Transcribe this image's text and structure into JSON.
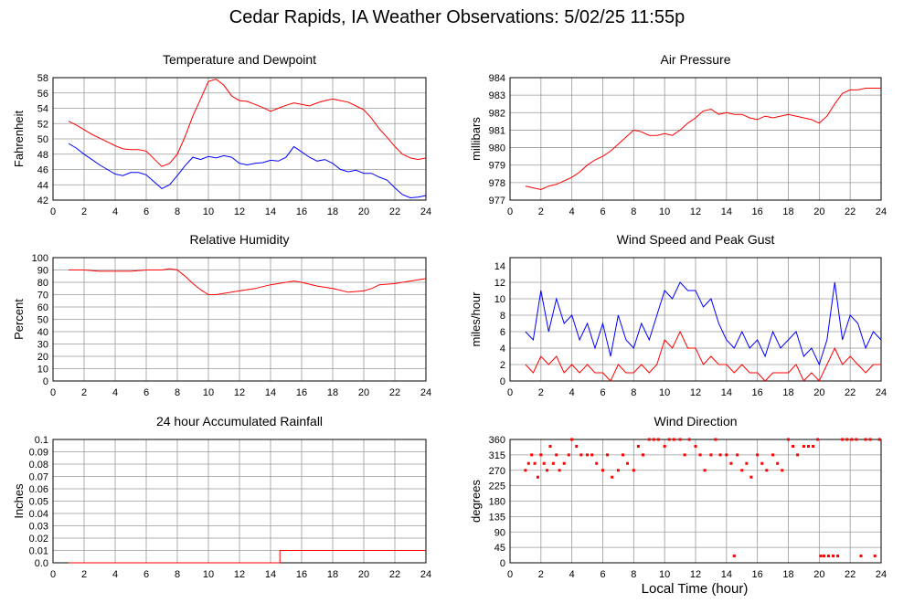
{
  "title": "Cedar Rapids, IA Weather Observations: 5/02/25 11:55p",
  "xlabel": "Local Time (hour)",
  "colors": {
    "red": "#ff0000",
    "blue": "#0000ff",
    "grid": "#999999",
    "frame": "#000000"
  },
  "chart_data": [
    {
      "type": "line",
      "title": "Temperature and Dewpoint",
      "ylabel": "Fahrenheit",
      "xlim": [
        0,
        24
      ],
      "ylim": [
        42,
        58
      ],
      "xticks": [
        0,
        2,
        4,
        6,
        8,
        10,
        12,
        14,
        16,
        18,
        20,
        22,
        24
      ],
      "yticks": [
        42,
        44,
        46,
        48,
        50,
        52,
        54,
        56,
        58
      ],
      "grid": true,
      "series": [
        {
          "color": "red",
          "x": [
            1,
            1.5,
            2,
            2.5,
            3,
            3.5,
            4,
            4.5,
            5,
            5.5,
            6,
            6.5,
            7,
            7.5,
            8,
            8.5,
            9,
            9.5,
            10,
            10.5,
            11,
            11.5,
            12,
            12.5,
            13,
            13.5,
            14,
            14.5,
            15,
            15.5,
            16,
            16.5,
            17,
            17.5,
            18,
            18.5,
            19,
            19.5,
            20,
            20.5,
            21,
            21.5,
            22,
            22.5,
            23,
            23.5,
            24
          ],
          "y": [
            52.3,
            51.8,
            51.2,
            50.6,
            50.1,
            49.6,
            49.1,
            48.7,
            48.6,
            48.6,
            48.4,
            47.4,
            46.4,
            46.8,
            48.0,
            50.3,
            53.0,
            55.2,
            57.5,
            57.8,
            57.0,
            55.6,
            55.0,
            54.9,
            54.5,
            54.1,
            53.6,
            54.0,
            54.4,
            54.7,
            54.5,
            54.3,
            54.7,
            55.0,
            55.2,
            55.0,
            54.8,
            54.3,
            53.8,
            52.7,
            51.3,
            50.2,
            49.0,
            48.0,
            47.5,
            47.3,
            47.5
          ]
        },
        {
          "color": "blue",
          "x": [
            1,
            1.5,
            2,
            2.5,
            3,
            3.5,
            4,
            4.5,
            5,
            5.5,
            6,
            6.5,
            7,
            7.5,
            8,
            8.5,
            9,
            9.5,
            10,
            10.5,
            11,
            11.5,
            12,
            12.5,
            13,
            13.5,
            14,
            14.5,
            15,
            15.5,
            16,
            16.5,
            17,
            17.5,
            18,
            18.5,
            19,
            19.5,
            20,
            20.5,
            21,
            21.5,
            22,
            22.5,
            23,
            23.5,
            24
          ],
          "y": [
            49.4,
            48.8,
            48.0,
            47.3,
            46.6,
            46.0,
            45.4,
            45.2,
            45.6,
            45.6,
            45.3,
            44.4,
            43.5,
            44.0,
            45.2,
            46.5,
            47.6,
            47.3,
            47.7,
            47.5,
            47.8,
            47.6,
            46.8,
            46.6,
            46.8,
            46.9,
            47.2,
            47.1,
            47.6,
            49.0,
            48.3,
            47.6,
            47.1,
            47.3,
            46.8,
            46.0,
            45.7,
            45.9,
            45.5,
            45.5,
            45.0,
            44.6,
            43.6,
            42.7,
            42.3,
            42.4,
            42.6
          ]
        }
      ]
    },
    {
      "type": "line",
      "title": "Air Pressure",
      "ylabel": "millibars",
      "xlim": [
        0,
        24
      ],
      "ylim": [
        977,
        984
      ],
      "xticks": [
        0,
        2,
        4,
        6,
        8,
        10,
        12,
        14,
        16,
        18,
        20,
        22,
        24
      ],
      "yticks": [
        977,
        978,
        979,
        980,
        981,
        982,
        983,
        984
      ],
      "grid": true,
      "series": [
        {
          "color": "red",
          "x": [
            1,
            1.5,
            2,
            2.5,
            3,
            3.5,
            4,
            4.5,
            5,
            5.5,
            6,
            6.5,
            7,
            7.5,
            8,
            8.5,
            9,
            9.5,
            10,
            10.5,
            11,
            11.5,
            12,
            12.5,
            13,
            13.5,
            14,
            14.5,
            15,
            15.5,
            16,
            16.5,
            17,
            17.5,
            18,
            18.5,
            19,
            19.5,
            20,
            20.5,
            21,
            21.5,
            22,
            22.5,
            23,
            23.5,
            24
          ],
          "y": [
            977.8,
            977.7,
            977.6,
            977.8,
            977.9,
            978.1,
            978.3,
            978.6,
            979.0,
            979.3,
            979.5,
            979.8,
            980.2,
            980.6,
            981.0,
            980.9,
            980.7,
            980.7,
            980.8,
            980.7,
            981.0,
            981.4,
            981.7,
            982.1,
            982.2,
            981.9,
            982.0,
            981.9,
            981.9,
            981.7,
            981.6,
            981.8,
            981.7,
            981.8,
            981.9,
            981.8,
            981.7,
            981.6,
            981.4,
            981.8,
            982.5,
            983.1,
            983.3,
            983.3,
            983.4,
            983.4,
            983.4
          ]
        }
      ]
    },
    {
      "type": "line",
      "title": "Relative Humidity",
      "ylabel": "Percent",
      "xlim": [
        0,
        24
      ],
      "ylim": [
        0,
        100
      ],
      "xticks": [
        0,
        2,
        4,
        6,
        8,
        10,
        12,
        14,
        16,
        18,
        20,
        22,
        24
      ],
      "yticks": [
        0,
        10,
        20,
        30,
        40,
        50,
        60,
        70,
        80,
        90,
        100
      ],
      "grid": true,
      "series": [
        {
          "color": "red",
          "x": [
            1,
            2,
            3,
            4,
            5,
            6,
            7,
            7.5,
            8,
            8.5,
            9,
            9.5,
            10,
            10.5,
            11,
            12,
            13,
            14,
            15,
            15.5,
            16,
            17,
            18,
            19,
            20,
            20.5,
            21,
            22,
            23,
            24
          ],
          "y": [
            90,
            90,
            89,
            89,
            89,
            90,
            90,
            91,
            90,
            85,
            79,
            74,
            70,
            70,
            71,
            73,
            75,
            78,
            80,
            81,
            80,
            77,
            75,
            72,
            73,
            75,
            78,
            79,
            81,
            83
          ]
        }
      ]
    },
    {
      "type": "line",
      "title": "Wind Speed and Peak Gust",
      "ylabel": "miles/hour",
      "xlim": [
        0,
        24
      ],
      "ylim": [
        0,
        15
      ],
      "xticks": [
        0,
        2,
        4,
        6,
        8,
        10,
        12,
        14,
        16,
        18,
        20,
        22,
        24
      ],
      "yticks": [
        0,
        2,
        4,
        6,
        8,
        10,
        12,
        14
      ],
      "grid": true,
      "series": [
        {
          "color": "blue",
          "x": [
            1,
            1.5,
            2,
            2.5,
            3,
            3.5,
            4,
            4.5,
            5,
            5.5,
            6,
            6.5,
            7,
            7.5,
            8,
            8.5,
            9,
            9.5,
            10,
            10.5,
            11,
            11.5,
            12,
            12.5,
            13,
            13.5,
            14,
            14.5,
            15,
            15.5,
            16,
            16.5,
            17,
            17.5,
            18,
            18.5,
            19,
            19.5,
            20,
            20.5,
            21,
            21.5,
            22,
            22.5,
            23,
            23.5,
            24
          ],
          "y": [
            6,
            5,
            11,
            6,
            10,
            7,
            8,
            5,
            7,
            4,
            7,
            3,
            8,
            5,
            4,
            7,
            5,
            8,
            11,
            10,
            12,
            11,
            11,
            9,
            10,
            7,
            5,
            4,
            6,
            4,
            5,
            3,
            6,
            4,
            5,
            6,
            3,
            4,
            2,
            5,
            12,
            5,
            8,
            7,
            4,
            6,
            5
          ]
        },
        {
          "color": "red",
          "x": [
            1,
            1.5,
            2,
            2.5,
            3,
            3.5,
            4,
            4.5,
            5,
            5.5,
            6,
            6.5,
            7,
            7.5,
            8,
            8.5,
            9,
            9.5,
            10,
            10.5,
            11,
            11.5,
            12,
            12.5,
            13,
            13.5,
            14,
            14.5,
            15,
            15.5,
            16,
            16.5,
            17,
            17.5,
            18,
            18.5,
            19,
            19.5,
            20,
            20.5,
            21,
            21.5,
            22,
            22.5,
            23,
            23.5,
            24
          ],
          "y": [
            2,
            1,
            3,
            2,
            3,
            1,
            2,
            1,
            2,
            1,
            1,
            0,
            2,
            1,
            1,
            2,
            1,
            2,
            5,
            4,
            6,
            4,
            4,
            2,
            3,
            2,
            2,
            1,
            2,
            1,
            1,
            0,
            1,
            1,
            1,
            2,
            0,
            1,
            0,
            2,
            4,
            2,
            3,
            2,
            1,
            2,
            2
          ]
        }
      ]
    },
    {
      "type": "line",
      "title": "24 hour Accumulated Rainfall",
      "ylabel": "Inches",
      "xlim": [
        0,
        24
      ],
      "ylim": [
        0,
        0.1
      ],
      "xticks": [
        0,
        2,
        4,
        6,
        8,
        10,
        12,
        14,
        16,
        18,
        20,
        22,
        24
      ],
      "yticks": [
        0,
        0.01,
        0.02,
        0.03,
        0.04,
        0.05,
        0.06,
        0.07,
        0.08,
        0.09,
        0.1
      ],
      "ytick_labels": [
        "0.0",
        "0.01",
        "0.02",
        "0.03",
        "0.04",
        "0.05",
        "0.06",
        "0.07",
        "0.08",
        "0.09",
        "0.1"
      ],
      "grid": true,
      "series": [
        {
          "color": "red",
          "x": [
            1,
            14.6,
            14.6,
            24
          ],
          "y": [
            0,
            0,
            0.01,
            0.01
          ]
        }
      ]
    },
    {
      "type": "scatter",
      "title": "Wind Direction",
      "ylabel": "degrees",
      "xlim": [
        0,
        24
      ],
      "ylim": [
        0,
        360
      ],
      "xticks": [
        0,
        2,
        4,
        6,
        8,
        10,
        12,
        14,
        16,
        18,
        20,
        22,
        24
      ],
      "yticks": [
        0,
        45,
        90,
        135,
        180,
        225,
        270,
        315,
        360
      ],
      "grid": true,
      "series": [
        {
          "color": "red",
          "x": [
            1,
            1.2,
            1.4,
            1.6,
            1.8,
            2,
            2.2,
            2.4,
            2.6,
            2.8,
            3,
            3.2,
            3.5,
            3.8,
            4,
            4.3,
            4.6,
            5,
            5.3,
            5.6,
            6,
            6.3,
            6.6,
            7,
            7.3,
            7.6,
            8,
            8.3,
            8.6,
            9,
            9.3,
            9.6,
            10,
            10.3,
            10.6,
            11,
            11.3,
            11.6,
            12,
            12.3,
            12.6,
            13,
            13.3,
            13.6,
            14,
            14.3,
            14.5,
            14.7,
            15,
            15.3,
            15.6,
            16,
            16.3,
            16.6,
            17,
            17.3,
            17.6,
            18,
            18.3,
            18.6,
            19,
            19.3,
            19.6,
            19.9,
            20.1,
            20.3,
            20.6,
            20.9,
            21.2,
            21.5,
            21.8,
            22.1,
            22.4,
            22.7,
            23,
            23.3,
            23.6,
            23.9
          ],
          "y": [
            270,
            290,
            315,
            290,
            250,
            315,
            290,
            270,
            340,
            290,
            315,
            270,
            290,
            315,
            360,
            340,
            315,
            315,
            315,
            290,
            270,
            315,
            250,
            270,
            315,
            290,
            270,
            340,
            315,
            360,
            360,
            360,
            340,
            360,
            360,
            360,
            315,
            360,
            340,
            315,
            270,
            315,
            360,
            315,
            315,
            290,
            20,
            315,
            270,
            290,
            250,
            315,
            290,
            270,
            315,
            290,
            270,
            360,
            340,
            315,
            340,
            340,
            340,
            360,
            20,
            20,
            20,
            20,
            20,
            360,
            360,
            360,
            360,
            20,
            360,
            360,
            20,
            360
          ]
        }
      ]
    }
  ]
}
